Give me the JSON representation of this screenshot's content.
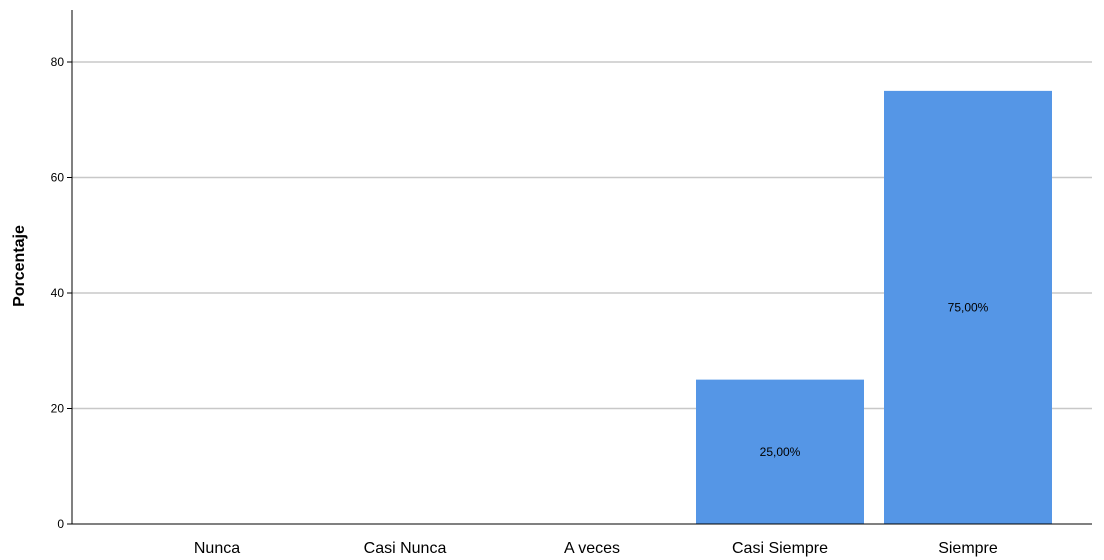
{
  "chart_data": {
    "type": "bar",
    "title": "",
    "xlabel": "",
    "ylabel": "Porcentaje",
    "categories": [
      "Nunca",
      "Casi Nunca",
      "A veces",
      "Casi Siempre",
      "Siempre"
    ],
    "values": [
      0,
      0,
      0,
      25,
      75
    ],
    "data_labels": [
      "",
      "",
      "",
      "25,00%",
      "75,00%"
    ],
    "ylim": [
      0,
      88
    ],
    "yticks": [
      0,
      20,
      40,
      60,
      80
    ],
    "grid": true,
    "legend": "none",
    "colors": {
      "bar": "#5596E6",
      "grid": "#C8C8C8",
      "axis": "#000000"
    }
  }
}
